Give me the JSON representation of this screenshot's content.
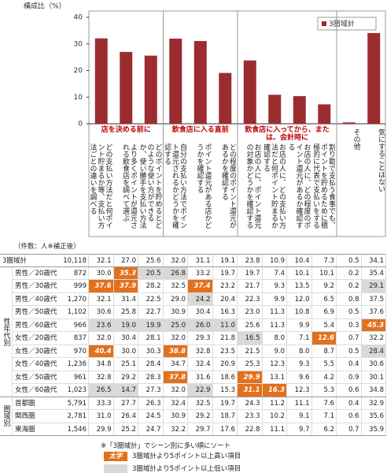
{
  "chart_data": {
    "type": "bar",
    "y_label": "構成比（%）",
    "ylim": [
      0,
      40
    ],
    "yticks": [
      0,
      10,
      20,
      30,
      40
    ],
    "categories": [
      "どの支払い方法だと何ポイント貯まるか等、支払い方法ごとの違いを調べる",
      "より多くポイントが還元される飲食店を調べて選ぶ",
      "どのポイントを貯めるとどのような使い方ができるか、使い勝手を支払い方法ごとに調べる",
      "自分の支払い方法でポイント還元されるかどうかを確認する",
      "ポイント還元がある店かどうかを確認する",
      "どの程度のポイント還元があるかを確認する",
      "お店の人に、ポイント還元の対象かどうかを確認する",
      "お店の人に、どの支払い方法だと何ポイント貯まるか確認する",
      "お店の人に、どの程度のポイント還元があるか確認する",
      "割り勘で支払う食事でも、ポイントを貯めるために積極的に代表で支払いをする",
      "その他",
      "気にすることはない"
    ],
    "category_groups": [
      "店を決める前に",
      "店を決める前に",
      "店を決める前に",
      "飲食店に入る直前",
      "飲食店に入る直前",
      "飲食店に入る直前",
      "飲食店に入ってから、または、会計時に",
      "飲食店に入ってから、または、会計時に",
      "飲食店に入ってから、または、会計時に",
      "飲食店に入ってから、または、会計時に",
      null,
      null
    ],
    "group_color": "#c00000",
    "series": [
      {
        "name": "3圏域計",
        "color": "#9b2d30",
        "values": [
          32.1,
          27.0,
          25.6,
          32.0,
          31.1,
          19.1,
          23.8,
          10.9,
          10.4,
          7.3,
          0.5,
          34.1
        ]
      }
    ]
  },
  "table": {
    "count_header": "（件数：人※補正後）",
    "high_color": "#e2711d",
    "low_color": "#d9d9d9",
    "sections": [
      {
        "rows": [
          {
            "label": "3圏域計",
            "count": "10,118",
            "values": [
              "32.1",
              "27.0",
              "25.6",
              "32.0",
              "31.1",
              "19.1",
              "23.8",
              "10.9",
              "10.4",
              "7.3",
              "0.5",
              "34.1"
            ],
            "shade": [
              null,
              null,
              null,
              null,
              null,
              null,
              null,
              null,
              null,
              null,
              null,
              null
            ]
          }
        ]
      },
      {
        "label": "性年代別",
        "rows": [
          {
            "label": "男性／20歳代",
            "count": "872",
            "values": [
              "30.0",
              "35.3",
              "20.5",
              "26.8",
              "33.2",
              "19.7",
              "19.7",
              "7.4",
              "10.1",
              "10.1",
              "0.2",
              "35.4"
            ],
            "shade": [
              null,
              "high",
              "low",
              "low",
              null,
              null,
              null,
              null,
              null,
              null,
              null,
              null
            ]
          },
          {
            "label": "男性／30歳代",
            "count": "999",
            "values": [
              "37.6",
              "37.9",
              "28.2",
              "32.5",
              "37.4",
              "23.2",
              "21.7",
              "9.3",
              "13.5",
              "9.2",
              "0.2",
              "29.1"
            ],
            "shade": [
              "high",
              "high",
              null,
              null,
              "high",
              null,
              null,
              null,
              null,
              null,
              null,
              "low"
            ]
          },
          {
            "label": "男性／40歳代",
            "count": "1,270",
            "values": [
              "32.1",
              "31.4",
              "22.5",
              "29.0",
              "24.2",
              "20.4",
              "22.3",
              "9.9",
              "12.0",
              "6.5",
              "0.8",
              "37.5"
            ],
            "shade": [
              null,
              null,
              null,
              null,
              "low",
              null,
              null,
              null,
              null,
              null,
              null,
              null
            ]
          },
          {
            "label": "男性／50歳代",
            "count": "1,102",
            "values": [
              "30.6",
              "25.8",
              "22.7",
              "30.9",
              "30.4",
              "16.3",
              "23.0",
              "11.3",
              "10.8",
              "6.9",
              "0.5",
              "37.6"
            ],
            "shade": [
              null,
              null,
              null,
              null,
              null,
              null,
              null,
              null,
              null,
              null,
              null,
              null
            ]
          },
          {
            "label": "男性／60歳代",
            "count": "966",
            "values": [
              "23.6",
              "19.0",
              "19.9",
              "25.0",
              "26.0",
              "11.0",
              "25.6",
              "11.3",
              "9.9",
              "5.4",
              "0.3",
              "45.3"
            ],
            "shade": [
              "low",
              "low",
              "low",
              "low",
              "low",
              "low",
              null,
              null,
              null,
              null,
              null,
              "high"
            ]
          },
          {
            "label": "女性／20歳代",
            "count": "837",
            "values": [
              "32.0",
              "30.4",
              "28.1",
              "32.0",
              "29.3",
              "21.8",
              "16.5",
              "8.0",
              "7.1",
              "12.6",
              "0.7",
              "32.2"
            ],
            "shade": [
              null,
              null,
              null,
              null,
              null,
              null,
              "low",
              null,
              null,
              "high",
              null,
              null
            ]
          },
          {
            "label": "女性／30歳代",
            "count": "970",
            "values": [
              "40.4",
              "30.0",
              "30.3",
              "38.8",
              "32.8",
              "23.5",
              "21.5",
              "9.0",
              "8.0",
              "8.7",
              "0.5",
              "28.4"
            ],
            "shade": [
              "high",
              null,
              null,
              "high",
              null,
              null,
              null,
              null,
              null,
              null,
              null,
              "low"
            ]
          },
          {
            "label": "女性／40歳代",
            "count": "1,236",
            "values": [
              "34.8",
              "25.1",
              "28.4",
              "34.7",
              "32.4",
              "20.9",
              "25.3",
              "12.3",
              "9.3",
              "5.5",
              "0.4",
              "30.6"
            ],
            "shade": [
              null,
              null,
              null,
              null,
              null,
              null,
              null,
              null,
              null,
              null,
              null,
              null
            ]
          },
          {
            "label": "女性／50歳代",
            "count": "961",
            "values": [
              "32.8",
              "29.2",
              "28.3",
              "37.8",
              "31.6",
              "18.6",
              "29.9",
              "13.1",
              "9.6",
              "4.2",
              "0.9",
              "30.1"
            ],
            "shade": [
              null,
              null,
              null,
              "high",
              null,
              null,
              "high",
              null,
              null,
              null,
              null,
              null
            ]
          },
          {
            "label": "女性／60歳代",
            "count": "1,023",
            "values": [
              "26.5",
              "14.7",
              "27.3",
              "32.0",
              "22.9",
              "15.3",
              "31.1",
              "16.3",
              "12.3",
              "5.3",
              "0.6",
              "34.8"
            ],
            "shade": [
              "low",
              "low",
              null,
              null,
              "low",
              null,
              "high",
              "high",
              null,
              null,
              null,
              null
            ]
          }
        ]
      },
      {
        "label": "圏域別",
        "rows": [
          {
            "label": "首都圏",
            "count": "5,791",
            "values": [
              "33.3",
              "27.7",
              "26.3",
              "32.4",
              "32.5",
              "19.7",
              "24.3",
              "11.2",
              "11.1",
              "7.6",
              "0.4",
              "32.9"
            ],
            "shade": [
              null,
              null,
              null,
              null,
              null,
              null,
              null,
              null,
              null,
              null,
              null,
              null
            ]
          },
          {
            "label": "関西圏",
            "count": "2,781",
            "values": [
              "31.0",
              "26.4",
              "24.5",
              "30.9",
              "29.2",
              "18.7",
              "23.3",
              "10.2",
              "9.1",
              "7.1",
              "0.6",
              "35.6"
            ],
            "shade": [
              null,
              null,
              null,
              null,
              null,
              null,
              null,
              null,
              null,
              null,
              null,
              null
            ]
          },
          {
            "label": "東海圏",
            "count": "1,546",
            "values": [
              "29.9",
              "25.2",
              "24.7",
              "32.2",
              "29.7",
              "17.6",
              "22.8",
              "11.1",
              "9.7",
              "6.2",
              "0.7",
              "35.9"
            ],
            "shade": [
              null,
              null,
              null,
              null,
              null,
              null,
              null,
              null,
              null,
              null,
              null,
              null
            ]
          }
        ]
      }
    ]
  },
  "footer": {
    "note": "※「3圏域計」でシーン別に多い順にソート",
    "high_sample": "太字",
    "high_label": "3圏域計より5ポイント以上高い項目",
    "low_label": "3圏域計より5ポイント以上低い項目"
  }
}
